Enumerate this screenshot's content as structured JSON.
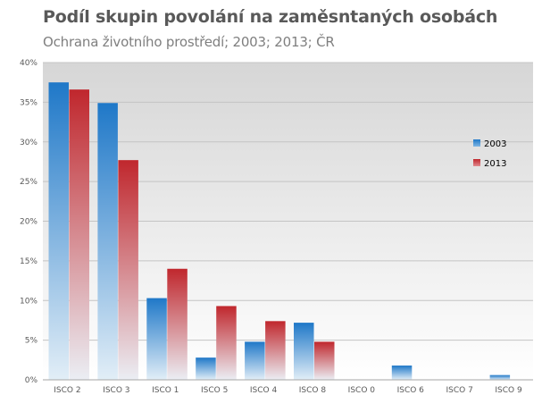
{
  "chart_data": {
    "type": "bar",
    "title": "Podíl skupin povolání na zaměsntaných osobách",
    "subtitle": "Ochrana životního prostředí;  2003; 2013; ČR",
    "categories": [
      "ISCO 2",
      "ISCO 3",
      "ISCO 1",
      "ISCO 5",
      "ISCO 4",
      "ISCO 8",
      "ISCO 0",
      "ISCO 6",
      "ISCO 7",
      "ISCO 9"
    ],
    "series": [
      {
        "name": "2003",
        "color": "#1f78c8",
        "values": [
          37.5,
          34.9,
          10.3,
          2.8,
          4.8,
          7.2,
          0,
          1.8,
          0,
          0.6
        ]
      },
      {
        "name": "2013",
        "color": "#c0272d",
        "values": [
          36.6,
          27.7,
          14.0,
          9.3,
          7.4,
          4.8,
          0,
          0,
          0,
          0
        ]
      }
    ],
    "yticks": [
      "0%",
      "5%",
      "10%",
      "15%",
      "20%",
      "25%",
      "30%",
      "35%",
      "40%"
    ],
    "ylim": [
      0,
      40
    ],
    "legend_position": "right",
    "grid": true
  }
}
